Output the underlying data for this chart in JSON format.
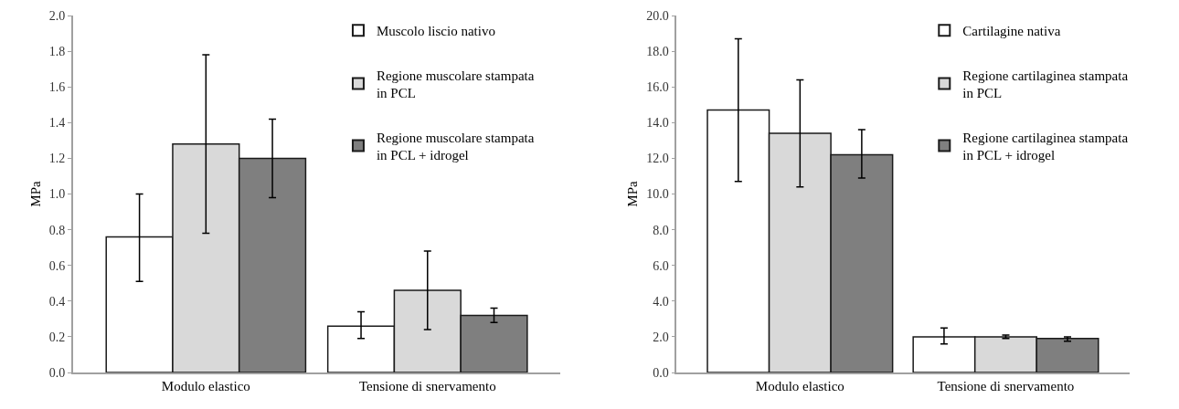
{
  "chart_data": [
    {
      "type": "bar",
      "ylabel": "MPa",
      "categories": [
        "Modulo elastico",
        "Tensione di snervamento"
      ],
      "ylim": [
        0,
        2.0
      ],
      "yticks": [
        {
          "value": 0,
          "label": "0.0"
        },
        {
          "value": 0.2,
          "label": "0.2"
        },
        {
          "value": 0.4,
          "label": "0.4"
        },
        {
          "value": 0.6,
          "label": "0.6"
        },
        {
          "value": 0.8,
          "label": "0.8"
        },
        {
          "value": 1.0,
          "label": "1.0"
        },
        {
          "value": 1.2,
          "label": "1.2"
        },
        {
          "value": 1.4,
          "label": "1.4"
        },
        {
          "value": 1.6,
          "label": "1.6"
        },
        {
          "value": 1.8,
          "label": "1.8"
        },
        {
          "value": 2.0,
          "label": "2.0"
        }
      ],
      "grid": false,
      "legend": "top right",
      "series": [
        {
          "name": "Muscolo liscio nativo",
          "color": "#ffffff",
          "values": [
            0.76,
            0.26
          ],
          "errors": [
            [
              0.51,
              1.0
            ],
            [
              0.19,
              0.34
            ]
          ]
        },
        {
          "name": "Regione muscolare stampata\nin PCL",
          "color": "#d9d9d9",
          "values": [
            1.28,
            0.46
          ],
          "errors": [
            [
              0.78,
              1.78
            ],
            [
              0.24,
              0.68
            ]
          ]
        },
        {
          "name": "Regione muscolare stampata\nin PCL + idrogel",
          "color": "#7f7f7f",
          "values": [
            1.2,
            0.32
          ],
          "errors": [
            [
              0.98,
              1.42
            ],
            [
              0.28,
              0.36
            ]
          ]
        }
      ]
    },
    {
      "type": "bar",
      "ylabel": "MPa",
      "categories": [
        "Modulo elastico",
        "Tensione di snervamento"
      ],
      "ylim": [
        0,
        20.0
      ],
      "yticks": [
        {
          "value": 0,
          "label": "0.0"
        },
        {
          "value": 2,
          "label": "2.0"
        },
        {
          "value": 4,
          "label": "4.0"
        },
        {
          "value": 6,
          "label": "6.0"
        },
        {
          "value": 8,
          "label": "8.0"
        },
        {
          "value": 10,
          "label": "10.0"
        },
        {
          "value": 12,
          "label": "12.0"
        },
        {
          "value": 14,
          "label": "14.0"
        },
        {
          "value": 16,
          "label": "16.0"
        },
        {
          "value": 18,
          "label": "18.0"
        },
        {
          "value": 20,
          "label": "20.0"
        }
      ],
      "grid": false,
      "legend": "top right",
      "series": [
        {
          "name": "Cartilagine nativa",
          "color": "#ffffff",
          "values": [
            14.7,
            2.0
          ],
          "errors": [
            [
              10.7,
              18.7
            ],
            [
              1.6,
              2.5
            ]
          ]
        },
        {
          "name": "Regione cartilaginea stampata\nin PCL",
          "color": "#d9d9d9",
          "values": [
            13.4,
            2.0
          ],
          "errors": [
            [
              10.4,
              16.4
            ],
            [
              1.9,
              2.1
            ]
          ]
        },
        {
          "name": "Regione cartilaginea stampata\nin PCL + idrogel",
          "color": "#7f7f7f",
          "values": [
            12.2,
            1.9
          ],
          "errors": [
            [
              10.9,
              13.6
            ],
            [
              1.75,
              2.0
            ]
          ]
        }
      ]
    }
  ]
}
